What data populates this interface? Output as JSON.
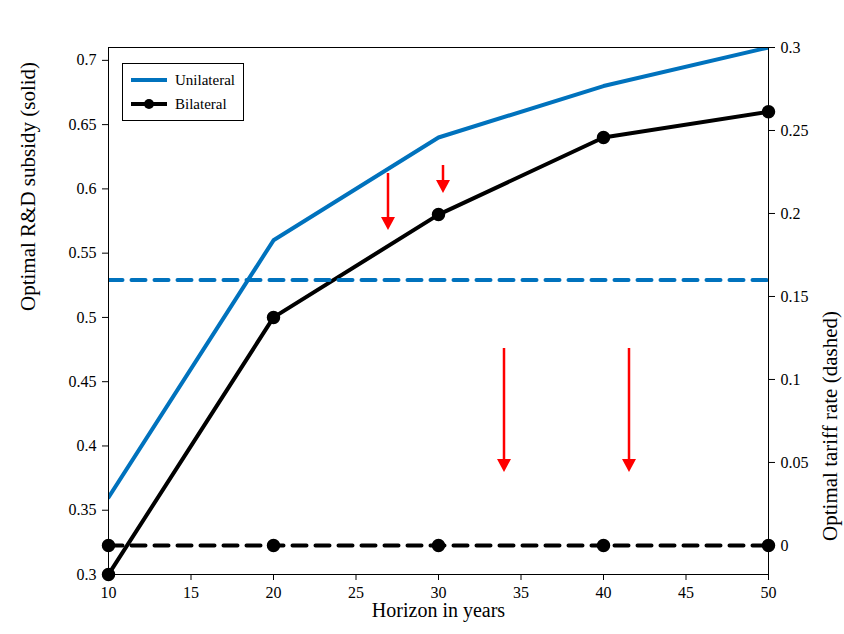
{
  "chart_data": {
    "type": "line",
    "x_label": "Horizon in years",
    "y_label": "Optimal R&D subsidy (solid)",
    "y2_label": "Optimal tariff rate (dashed)",
    "x": [
      10,
      20,
      30,
      40,
      50
    ],
    "series": [
      {
        "name": "Unilateral",
        "color": "#0072bd",
        "line_style": "solid",
        "values": [
          0.36,
          0.56,
          0.64,
          0.68,
          0.71
        ]
      },
      {
        "name": "Bilateral",
        "color": "#000000",
        "line_style": "solid",
        "marker": "circle",
        "values": [
          0.3,
          0.5,
          0.58,
          0.64,
          0.66
        ]
      },
      {
        "name": "Unilateral",
        "color": "#0072bd",
        "line_style": "dashed",
        "axis": "y2",
        "values": [
          0.16,
          0.16,
          0.16,
          0.16,
          0.16
        ]
      },
      {
        "name": "Bilateral",
        "color": "#000000",
        "line_style": "dashed",
        "marker": "circle",
        "axis": "y2",
        "values": [
          0,
          0,
          0,
          0,
          0
        ]
      }
    ],
    "xlim": [
      10,
      50
    ],
    "xticks": [
      10,
      15,
      20,
      25,
      30,
      35,
      40,
      45,
      50
    ],
    "ylim": [
      0.3,
      0.71
    ],
    "yticks": [
      0.3,
      0.35,
      0.4,
      0.45,
      0.5,
      0.55,
      0.6,
      0.65,
      0.7
    ],
    "y2lim": [
      -0.0175,
      0.3
    ],
    "y2ticks": [
      0,
      0.05,
      0.1,
      0.15,
      0.2,
      0.25,
      0.3
    ],
    "legend": "upper left",
    "grid": false
  }
}
